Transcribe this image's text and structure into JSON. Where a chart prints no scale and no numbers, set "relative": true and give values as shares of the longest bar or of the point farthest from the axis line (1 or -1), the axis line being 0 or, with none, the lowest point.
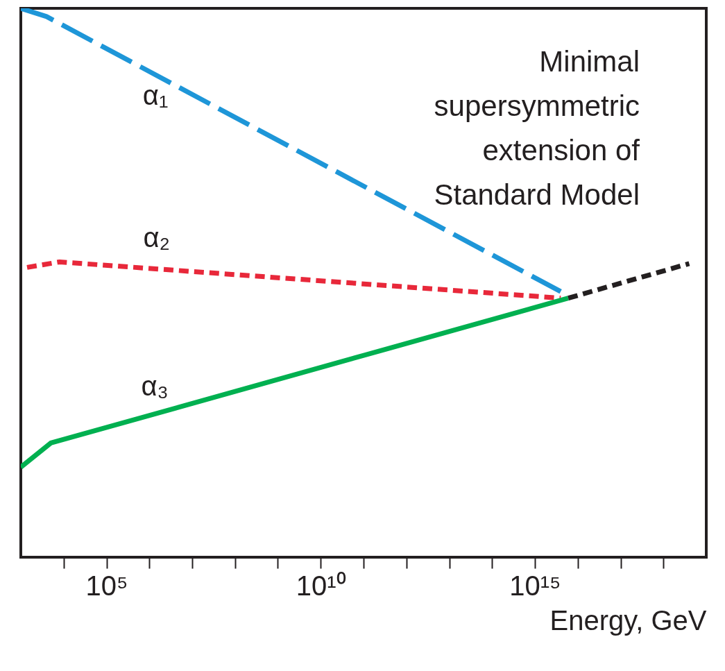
{
  "chart_data": {
    "type": "line",
    "relative": true,
    "log": "x",
    "xlabel": "Energy, GeV",
    "xlim": [
      1000,
      1e+19
    ],
    "xticks": [
      {
        "value": 10000,
        "label": null
      },
      {
        "value": 100000,
        "label": "10⁵"
      },
      {
        "value": 1000000.0,
        "label": null
      },
      {
        "value": 10000000.0,
        "label": null
      },
      {
        "value": 100000000.0,
        "label": null
      },
      {
        "value": 1000000000.0,
        "label": null
      },
      {
        "value": 10000000000.0,
        "label": "10¹⁰"
      },
      {
        "value": 100000000000.0,
        "label": null
      },
      {
        "value": 1000000000000.0,
        "label": null
      },
      {
        "value": 10000000000000.0,
        "label": null
      },
      {
        "value": 100000000000000.0,
        "label": null
      },
      {
        "value": 1000000000000000.0,
        "label": "10¹⁵"
      },
      {
        "value": 1e+16,
        "label": null
      },
      {
        "value": 1e+17,
        "label": null
      },
      {
        "value": 1e+18,
        "label": null
      }
    ],
    "series": [
      {
        "name": "α₁",
        "color": "#1e96d8",
        "line_style": "dashed",
        "x": [
          1000,
          4000,
          4000000000000000.0
        ],
        "values": [
          1,
          0.985,
          0.484
        ]
      },
      {
        "name": "α₂",
        "color": "#e8283a",
        "line_style": "dotted",
        "x": [
          1400,
          8000,
          4000000000000000.0
        ],
        "values": [
          0.528,
          0.538,
          0.472
        ]
      },
      {
        "name": "α₃",
        "color": "#00b050",
        "line_style": "solid",
        "x": [
          1000,
          5000,
          6000000000000000.0
        ],
        "values": [
          0.164,
          0.208,
          0.472
        ]
      },
      {
        "color": "#231f20",
        "line_style": "dotted",
        "x": [
          6000000000000000.0,
          4e+18
        ],
        "values": [
          0.472,
          0.535
        ]
      }
    ],
    "annotations": [
      "Minimal supersymmetric extension of Standard Model"
    ]
  }
}
